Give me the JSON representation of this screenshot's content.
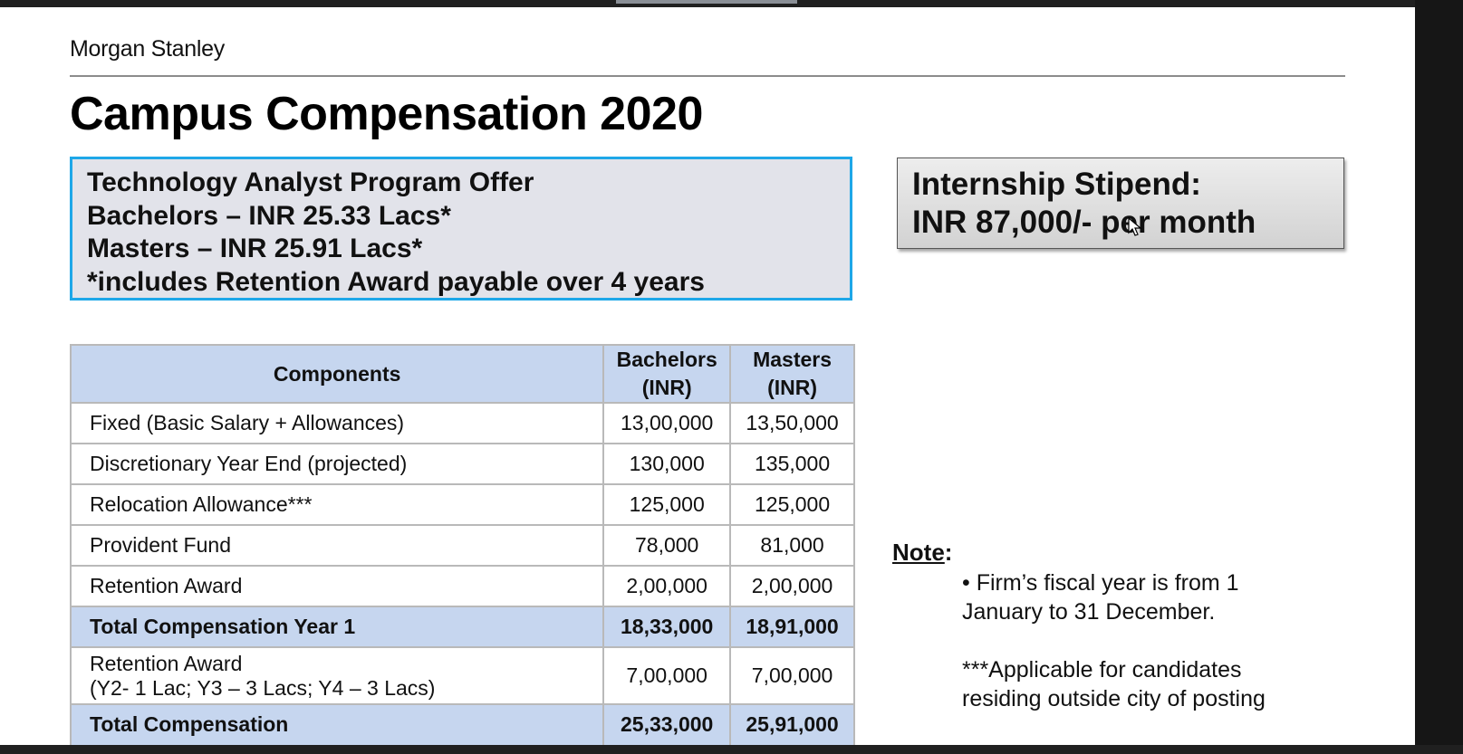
{
  "brand": "Morgan Stanley",
  "title": "Campus Compensation 2020",
  "offer_box": {
    "lines": [
      "Technology Analyst Program Offer",
      "Bachelors –  INR 25.33 Lacs*",
      "Masters – INR 25.91 Lacs*",
      "*includes Retention Award payable over 4 years"
    ]
  },
  "stipend_box": {
    "lines": [
      "Internship Stipend:",
      "INR 87,000/- per month"
    ]
  },
  "table": {
    "headers": {
      "components": "Components",
      "bachelors_1": "Bachelors",
      "bachelors_2": "(INR)",
      "masters_1": "Masters",
      "masters_2": "(INR)"
    },
    "rows": [
      {
        "label": "Fixed  (Basic Salary + Allowances)",
        "bachelors": "13,00,000",
        "masters": "13,50,000"
      },
      {
        "label": "Discretionary Year End   (projected)",
        "bachelors": "130,000",
        "masters": "135,000"
      },
      {
        "label": "Relocation Allowance***",
        "bachelors": "125,000",
        "masters": "125,000"
      },
      {
        "label": "Provident Fund",
        "bachelors": "78,000",
        "masters": "81,000"
      },
      {
        "label": "Retention Award",
        "bachelors": "2,00,000",
        "masters": "2,00,000"
      },
      {
        "label": "Total Compensation Year 1",
        "bachelors": "18,33,000",
        "masters": "18,91,000"
      },
      {
        "label": "Retention Award",
        "sublabel": "(Y2- 1 Lac; Y3 – 3 Lacs; Y4 – 3 Lacs)",
        "bachelors": "7,00,000",
        "masters": "7,00,000"
      },
      {
        "label": "Total  Compensation",
        "bachelors": "25,33,000",
        "masters": "25,91,000"
      }
    ]
  },
  "note": {
    "heading": "Note",
    "colon": ":",
    "bullet_line1": "• Firm’s fiscal year is from 1",
    "bullet_line2": "January  to 31 December.",
    "footnote_line1": "***Applicable for candidates",
    "footnote_line2": "residing outside city of posting"
  }
}
